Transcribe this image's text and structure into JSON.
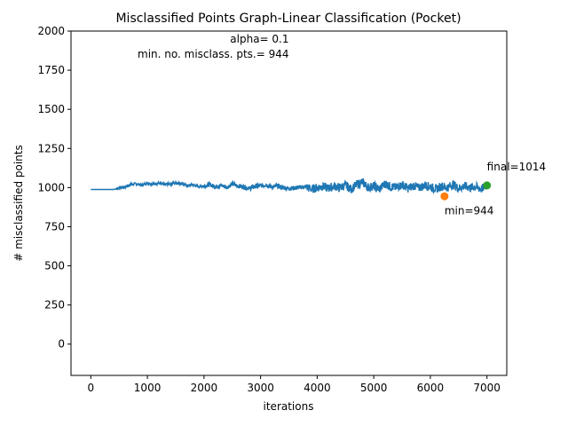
{
  "chart_data": {
    "type": "line",
    "title": "Misclassified Points Graph-Linear Classification (Pocket)",
    "xlabel": "iterations",
    "ylabel": "# misclassified points",
    "xlim": [
      -350,
      7350
    ],
    "ylim": [
      -200,
      2000
    ],
    "xticks": [
      0,
      1000,
      2000,
      3000,
      4000,
      5000,
      6000,
      7000
    ],
    "yticks": [
      0,
      250,
      500,
      750,
      1000,
      1250,
      1500,
      1750,
      2000
    ],
    "grid": false,
    "series": [
      {
        "type": "line",
        "color": "#1f77b4",
        "x": [
          0,
          200,
          400,
          450,
          500,
          600,
          700,
          800,
          900,
          1000,
          1100,
          1200,
          1300,
          1400,
          1500,
          1600,
          1700,
          1800,
          1900,
          2000,
          2100,
          2200,
          2300,
          2400,
          2500,
          2600,
          2700,
          2800,
          2900,
          3000,
          3100,
          3200,
          3300,
          3400,
          3500,
          3600,
          3700,
          3800,
          3900,
          4000,
          4100,
          4200,
          4300,
          4400,
          4500,
          4600,
          4700,
          4800,
          4900,
          5000,
          5100,
          5200,
          5300,
          5400,
          5500,
          5600,
          5700,
          5800,
          5900,
          6000,
          6100,
          6200,
          6300,
          6400,
          6500,
          6600,
          6700,
          6800,
          6900,
          7000
        ],
        "y": [
          988,
          988,
          988,
          992,
          998,
          1005,
          1018,
          1025,
          1015,
          1030,
          1022,
          1028,
          1020,
          1024,
          1030,
          1027,
          1012,
          1018,
          1006,
          1010,
          1020,
          1005,
          1015,
          1000,
          1025,
          1010,
          1005,
          995,
          1008,
          1012,
          1018,
          1003,
          1010,
          1000,
          995,
          998,
          1002,
          1005,
          990,
          1000,
          1008,
          995,
          1010,
          1000,
          1015,
          990,
          1020,
          1035,
          1000,
          1010,
          990,
          1025,
          1005,
          1000,
          1020,
          995,
          1012,
          998,
          1015,
          1005,
          990,
          1010,
          1000,
          1020,
          995,
          1010,
          1000,
          1005,
          990,
          1014
        ],
        "jitter_from": 450
      },
      {
        "type": "scatter",
        "color": "#ff7f0e",
        "x": [
          6250
        ],
        "y": [
          944
        ]
      },
      {
        "type": "scatter",
        "color": "#2ca02c",
        "x": [
          7000
        ],
        "y": [
          1014
        ]
      }
    ],
    "annotations": [
      {
        "text": "alpha= 0.1",
        "x": 3500,
        "y": 1925
      },
      {
        "text": "min. no. misclass. pts.= 944",
        "x": 3500,
        "y": 1830
      },
      {
        "text": "min=944",
        "x": 6250,
        "y": 830
      },
      {
        "text": "final=1014",
        "x": 7000,
        "y": 1110
      }
    ]
  }
}
